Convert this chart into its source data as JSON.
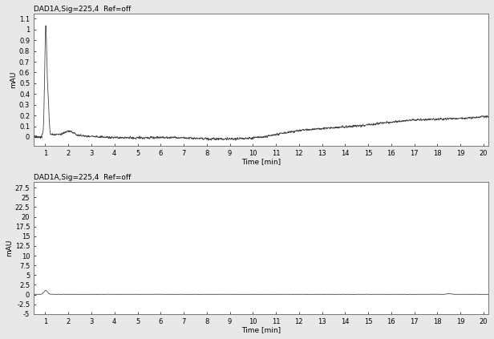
{
  "title1": "DAD1A,Sig=225,4  Ref=off",
  "title2": "DAD1A,Sig=225,4  Ref=off",
  "xlabel": "Time [min]",
  "ylabel": "mAU",
  "xlim": [
    0.5,
    20.2
  ],
  "ylim1": [
    -0.08,
    1.15
  ],
  "ylim2": [
    -5,
    29
  ],
  "yticks1": [
    0.0,
    0.1,
    0.2,
    0.3,
    0.4,
    0.5,
    0.6,
    0.7,
    0.8,
    0.9,
    1.0,
    1.1
  ],
  "yticks1_labels": [
    "0",
    "0.1",
    "0.2",
    "0.3",
    "0.4",
    "0.5",
    "0.6",
    "0.7",
    "0.8",
    "0.9",
    "1",
    "1.1"
  ],
  "yticks2": [
    -5.0,
    -2.5,
    0.0,
    2.5,
    5.0,
    7.5,
    10.0,
    12.5,
    15.0,
    17.5,
    20.0,
    22.5,
    25.0,
    27.5
  ],
  "yticks2_labels": [
    "-5",
    "-2.5",
    "0",
    "2.5",
    "5",
    "7.5",
    "10",
    "12.5",
    "15",
    "17.5",
    "20",
    "22.5",
    "25",
    "27.5"
  ],
  "xticks": [
    1,
    2,
    3,
    4,
    5,
    6,
    7,
    8,
    9,
    10,
    11,
    12,
    13,
    14,
    15,
    16,
    17,
    18,
    19,
    20
  ],
  "line_color": "#444444",
  "bg_color": "#ffffff",
  "fig_color": "#e8e8e8",
  "title_fontsize": 6.5,
  "axis_fontsize": 6.5,
  "tick_fontsize": 6
}
